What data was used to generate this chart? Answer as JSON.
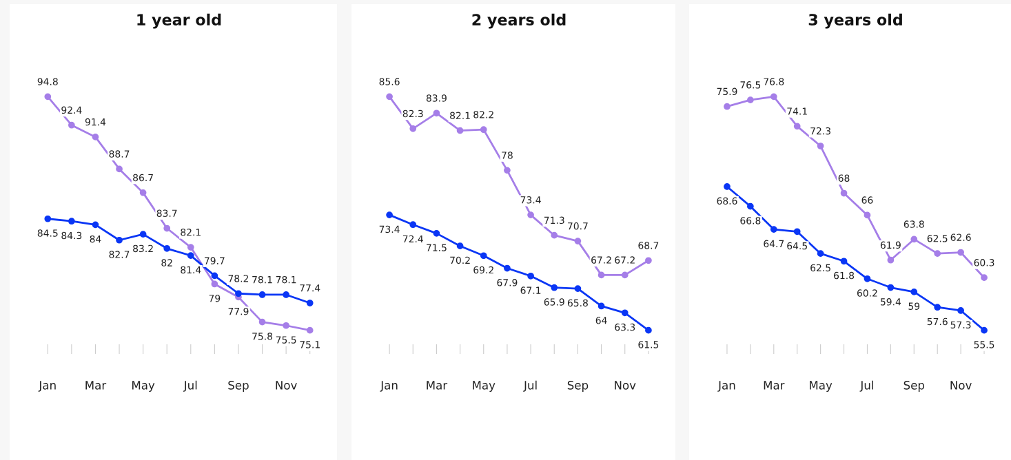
{
  "chart_data": [
    {
      "type": "line",
      "title": "1 year old",
      "categories": [
        "Jan",
        null,
        "Mar",
        null,
        "May",
        null,
        "Jul",
        null,
        "Sep",
        null,
        "Nov",
        null
      ],
      "tick_labels": "x",
      "data_labels": true,
      "marker": "circle",
      "grid": false,
      "series": [
        {
          "color": "#a57ee8",
          "values": [
            94.8,
            92.4,
            91.4,
            88.7,
            86.7,
            83.7,
            82.1,
            79,
            77.9,
            75.8,
            75.5,
            75.1
          ]
        },
        {
          "color": "#0a36f5",
          "values": [
            84.5,
            84.3,
            84,
            82.7,
            83.2,
            82,
            81.4,
            79.7,
            78.2,
            78.1,
            78.1,
            77.4
          ]
        }
      ]
    },
    {
      "type": "line",
      "title": "2 years old",
      "categories": [
        "Jan",
        null,
        "Mar",
        null,
        "May",
        null,
        "Jul",
        null,
        "Sep",
        null,
        "Nov",
        null
      ],
      "tick_labels": "x",
      "data_labels": true,
      "marker": "circle",
      "grid": false,
      "series": [
        {
          "color": "#a57ee8",
          "values": [
            85.6,
            82.3,
            83.9,
            82.1,
            82.2,
            78,
            73.4,
            71.3,
            70.7,
            67.2,
            67.2,
            68.7
          ]
        },
        {
          "color": "#0a36f5",
          "values": [
            73.4,
            72.4,
            71.5,
            70.2,
            69.2,
            67.9,
            67.1,
            65.9,
            65.8,
            64,
            63.3,
            61.5
          ]
        }
      ]
    },
    {
      "type": "line",
      "title": "3 years old",
      "categories": [
        "Jan",
        null,
        "Mar",
        null,
        "May",
        null,
        "Jul",
        null,
        "Sep",
        null,
        "Nov",
        null
      ],
      "tick_labels": "x",
      "data_labels": true,
      "marker": "circle",
      "grid": false,
      "series": [
        {
          "color": "#a57ee8",
          "values": [
            75.9,
            76.5,
            76.8,
            74.1,
            72.3,
            68,
            66,
            61.9,
            63.8,
            62.5,
            62.6,
            60.3
          ]
        },
        {
          "color": "#0a36f5",
          "values": [
            68.6,
            66.8,
            64.7,
            64.5,
            62.5,
            61.8,
            60.2,
            59.4,
            59,
            57.6,
            57.3,
            55.5
          ]
        }
      ]
    }
  ]
}
